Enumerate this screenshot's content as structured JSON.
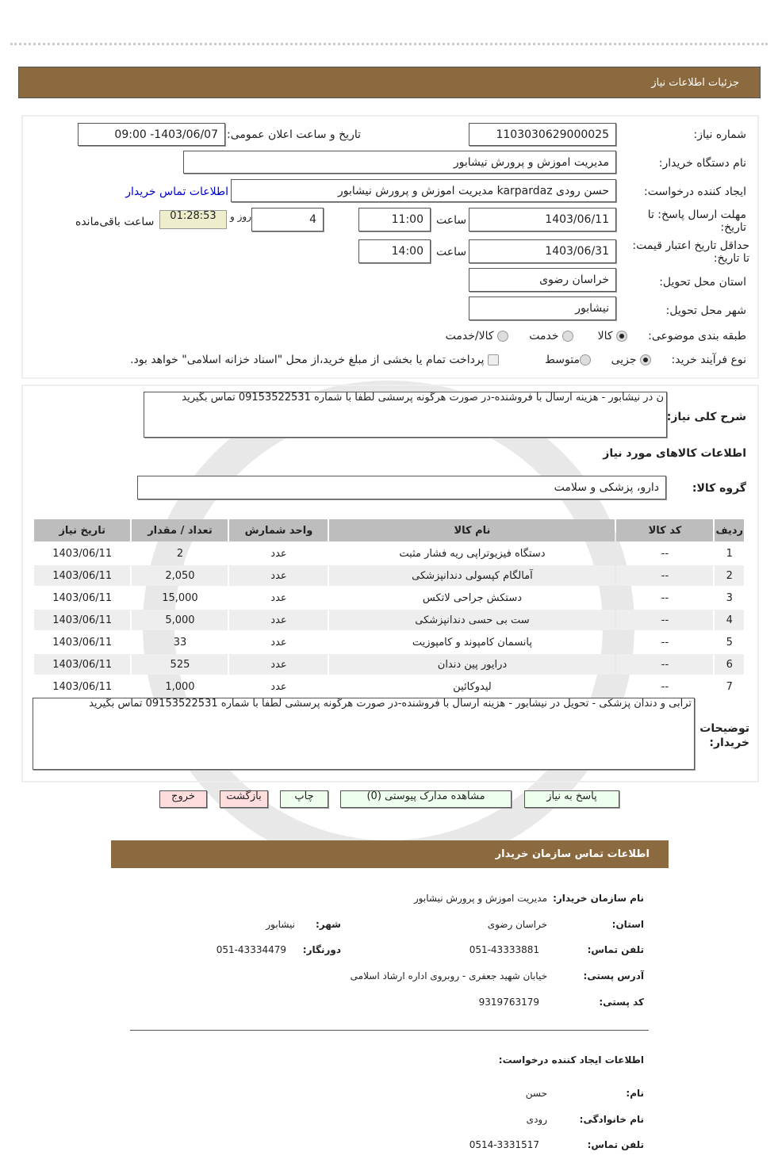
{
  "header": {
    "title": "جزئیات اطلاعات نیاز"
  },
  "form": {
    "need_number_label": "شماره نیاز:",
    "need_number": "1103030629000025",
    "announce_label": "تاریخ و ساعت اعلان عمومی:",
    "announce_value": "1403/06/07- 09:00",
    "buyer_label": "نام دستگاه خریدار:",
    "buyer_value": "مدیریت اموزش و پرورش نیشابور",
    "creator_label": "ایجاد کننده درخواست:",
    "creator_value": "حسن رودی karpardaz مدیریت اموزش و پرورش نیشابور",
    "contact_link": "اطلاعات تماس خریدار",
    "deadline_label": "مهلت ارسال پاسخ: تا تاریخ:",
    "deadline_date": "1403/06/11",
    "time_label": "ساعت",
    "deadline_time": "11:00",
    "days_value": "4",
    "days_label": "روز و",
    "timer": "01:28:53",
    "remaining_label": "ساعت باقی‌مانده",
    "validity_label": "حداقل تاریخ اعتبار قیمت: تا تاریخ:",
    "validity_date": "1403/06/31",
    "validity_time": "14:00",
    "province_label": "استان محل تحویل:",
    "province_value": "خراسان رضوی",
    "city_label": "شهر محل تحویل:",
    "city_value": "نیشابور",
    "category_label": "طبقه بندی موضوعی:",
    "category_options": [
      "کالا",
      "خدمت",
      "کالا/خدمت"
    ],
    "category_selected": "کالا",
    "process_label": "نوع فرآیند خرید:",
    "process_options": [
      "جزیی",
      "متوسط"
    ],
    "process_selected": "جزیی",
    "payment_note": "پرداخت تمام یا بخشی از مبلغ خرید،از محل \"اسناد خزانه اسلامی\" خواهد بود."
  },
  "details": {
    "desc_label": "شرح کلی نیاز:",
    "desc_value": "ن در نیشابور - هزینه ارسال با فروشنده-در صورت هرگونه پرسشی لطفا با شماره 09153522531 تماس بگیرید",
    "items_title": "اطلاعات کالاهای مورد نیاز",
    "group_label": "گروه کالا:",
    "group_value": "دارو، پزشکی و سلامت",
    "columns": [
      "ردیف",
      "کد کالا",
      "نام کالا",
      "واحد شمارش",
      "تعداد / مقدار",
      "تاریخ نیاز"
    ],
    "rows": [
      [
        "1",
        "--",
        "دستگاه فیزیوتراپی ریه فشار مثبت",
        "عدد",
        "2",
        "1403/06/11"
      ],
      [
        "2",
        "--",
        "آمالگام کپسولی دندانپزشکی",
        "عدد",
        "2,050",
        "1403/06/11"
      ],
      [
        "3",
        "--",
        "دستکش جراحی لاتکس",
        "عدد",
        "15,000",
        "1403/06/11"
      ],
      [
        "4",
        "--",
        "ست بی حسی دندانپزشکی",
        "عدد",
        "5,000",
        "1403/06/11"
      ],
      [
        "5",
        "--",
        "پانسمان کامپوند و کامپوزیت",
        "عدد",
        "33",
        "1403/06/11"
      ],
      [
        "6",
        "--",
        "درایور پین دندان",
        "عدد",
        "525",
        "1403/06/11"
      ],
      [
        "7",
        "--",
        "لیدوکائین",
        "عدد",
        "1,000",
        "1403/06/11"
      ]
    ],
    "notes_label": "توضیحات خریدار:",
    "notes_value": "ترابی و دندان پزشکی - تحویل در نیشابور - هزینه ارسال با فروشنده-در صورت هرگونه پرسشی لطفا با شماره 09153522531 تماس بگیرید"
  },
  "buttons": {
    "reply": "پاسخ به نیاز",
    "attachments": "مشاهده مدارک پیوستی (0)",
    "print": "چاپ",
    "back": "بازگشت",
    "exit": "خروج"
  },
  "contact": {
    "title": "اطلاعات تماس سازمان خریدار",
    "org_label": "نام سازمان خریدار:",
    "org_value": "مدیریت اموزش و پرورش نیشابور",
    "province_label": "استان:",
    "province_value": "خراسان رضوی",
    "city_label": "شهر:",
    "city_value": "نیشابور",
    "phone_label": "تلفن تماس:",
    "phone_value": "051-43333881",
    "fax_label": "دورنگار:",
    "fax_value": "051-43334479",
    "address_label": "آدرس پستی:",
    "address_value": "خیابان شهید جعفری - روبروی اداره ارشاد اسلامی",
    "postal_label": "کد پستی:",
    "postal_value": "9319763179",
    "creator_title": "اطلاعات ایجاد کننده درخواست:",
    "name_label": "نام:",
    "name_value": "حسن",
    "family_label": "نام خانوادگی:",
    "family_value": "رودی",
    "cphone_label": "تلفن تماس:",
    "cphone_value": "0514-3331517"
  },
  "colors": {
    "header_bar": "#8c6a40",
    "timer_bg": "#eeeecc",
    "link": "#0000cc",
    "green_button": "#eeffee",
    "pink_button": "#ffdddd"
  }
}
